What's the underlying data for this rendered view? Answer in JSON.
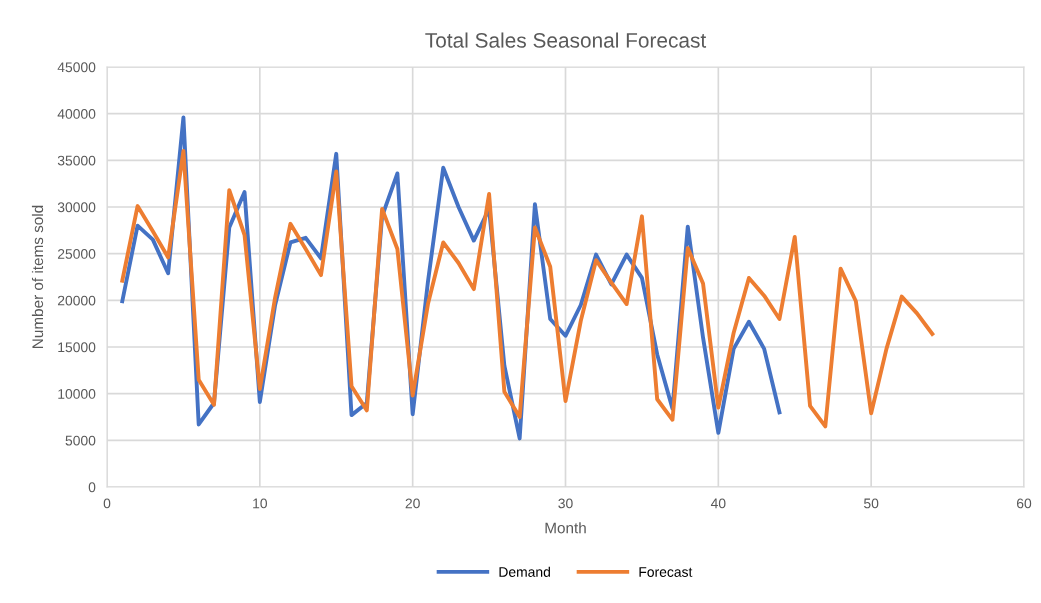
{
  "chart_data": {
    "type": "line",
    "title": "Total Sales Seasonal Forecast",
    "xlabel": "Month",
    "ylabel": "Number of items sold",
    "xlim": [
      0,
      60
    ],
    "xticks": [
      0,
      10,
      20,
      30,
      40,
      50,
      60
    ],
    "ylim": [
      0,
      45000
    ],
    "yticks": [
      0,
      5000,
      10000,
      15000,
      20000,
      25000,
      30000,
      35000,
      40000,
      45000
    ],
    "grid": true,
    "legend": "bottom",
    "marker": "none",
    "line_style": "solid",
    "series": [
      {
        "name": "Demand",
        "color": "#4472c4",
        "x": [
          1,
          2,
          3,
          4,
          5,
          6,
          7,
          8,
          9,
          10,
          11,
          12,
          13,
          14,
          15,
          16,
          17,
          18,
          19,
          20,
          21,
          22,
          23,
          24,
          25,
          26,
          27,
          28,
          29,
          30,
          31,
          32,
          33,
          34,
          35,
          36,
          37,
          38,
          39,
          40,
          41,
          42,
          43,
          44
        ],
        "values": [
          19900,
          28000,
          26500,
          22900,
          39600,
          6700,
          9000,
          27800,
          31600,
          9100,
          19500,
          26200,
          26700,
          24500,
          35700,
          7700,
          9000,
          29000,
          33600,
          7800,
          22000,
          34200,
          30000,
          26400,
          29800,
          13000,
          5200,
          30300,
          18000,
          16200,
          19500,
          24900,
          21700,
          24900,
          22400,
          14200,
          8400,
          27900,
          16000,
          5800,
          14800,
          17700,
          14800,
          8000
        ]
      },
      {
        "name": "Forecast",
        "color": "#ed7d31",
        "x": [
          1,
          2,
          3,
          4,
          5,
          6,
          7,
          8,
          9,
          10,
          11,
          12,
          13,
          14,
          15,
          16,
          17,
          18,
          19,
          20,
          21,
          22,
          23,
          24,
          25,
          26,
          27,
          28,
          29,
          30,
          31,
          32,
          33,
          34,
          35,
          36,
          37,
          38,
          39,
          40,
          41,
          42,
          43,
          44,
          45,
          46,
          47,
          48,
          49,
          50,
          51,
          52,
          53,
          54
        ],
        "values": [
          22100,
          30100,
          27400,
          24600,
          36000,
          11500,
          8800,
          31800,
          27000,
          10500,
          20300,
          28200,
          25500,
          22700,
          33800,
          10800,
          8200,
          29800,
          25500,
          9800,
          19600,
          26200,
          24000,
          21200,
          31400,
          10200,
          7500,
          27800,
          23600,
          9200,
          17800,
          24300,
          21900,
          19600,
          29000,
          9400,
          7200,
          25600,
          21800,
          8500,
          16500,
          22400,
          20500,
          18000,
          26800,
          8700,
          6500,
          23400,
          19900,
          7900,
          14800,
          20400,
          18600,
          16400
        ]
      }
    ]
  }
}
